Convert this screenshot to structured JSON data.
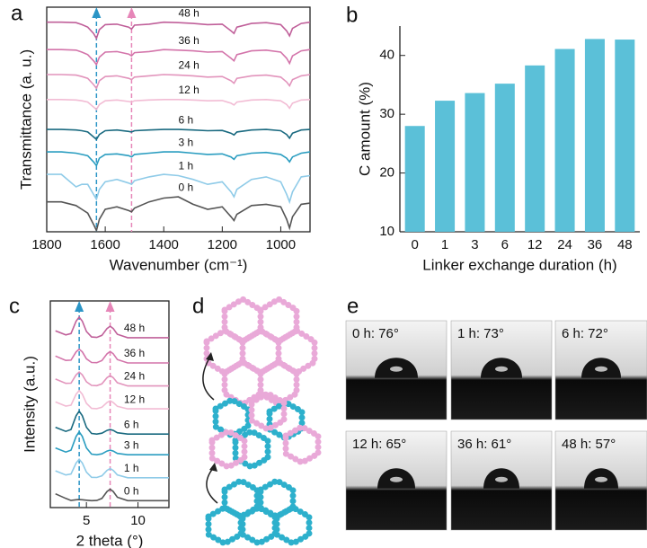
{
  "chart_data": [
    {
      "type": "line",
      "panel_label": "a",
      "xlabel": "Wavenumber (cm⁻¹)",
      "ylabel": "Transmittance (a. u.)",
      "xlim": [
        1800,
        900
      ],
      "xticks": [
        1800,
        1600,
        1400,
        1200,
        1000
      ],
      "ylim": [
        0,
        9
      ],
      "x": [
        1800,
        1750,
        1700,
        1680,
        1660,
        1640,
        1630,
        1620,
        1600,
        1560,
        1520,
        1510,
        1500,
        1450,
        1400,
        1350,
        1300,
        1250,
        1200,
        1170,
        1160,
        1150,
        1100,
        1050,
        1000,
        980,
        970,
        960,
        930,
        900
      ],
      "reference_lines": [
        {
          "x": 1630,
          "color": "#2b95c6"
        },
        {
          "x": 1510,
          "color": "#e686b8"
        }
      ],
      "series": [
        {
          "name": "0 h",
          "color": "#555555",
          "values": [
            1.2,
            1.2,
            1.05,
            0.9,
            0.75,
            0.3,
            0.05,
            0.5,
            0.9,
            1.0,
            0.85,
            0.8,
            0.95,
            1.2,
            1.35,
            1.4,
            1.1,
            0.9,
            1.0,
            0.6,
            0.45,
            0.7,
            1.05,
            1.1,
            1.0,
            0.5,
            0.15,
            0.6,
            1.1,
            1.15
          ]
        },
        {
          "name": "1 h",
          "color": "#8fcbe8",
          "values": [
            2.3,
            2.3,
            1.8,
            1.9,
            1.9,
            1.5,
            1.3,
            1.7,
            2.0,
            2.1,
            1.95,
            1.9,
            2.05,
            2.2,
            2.3,
            2.25,
            2.1,
            1.9,
            2.0,
            1.6,
            1.4,
            1.7,
            2.1,
            2.2,
            2.0,
            1.5,
            1.2,
            1.6,
            2.2,
            2.25
          ]
        },
        {
          "name": "3 h",
          "color": "#2a9dc0",
          "values": [
            3.2,
            3.2,
            3.15,
            3.1,
            3.05,
            2.8,
            2.65,
            2.95,
            3.1,
            3.12,
            3.05,
            3.0,
            3.1,
            3.15,
            3.2,
            3.2,
            3.15,
            3.1,
            3.12,
            3.0,
            2.9,
            3.05,
            3.15,
            3.18,
            3.1,
            2.95,
            2.8,
            3.0,
            3.15,
            3.2
          ]
        },
        {
          "name": "6 h",
          "color": "#1a6a80",
          "values": [
            4.1,
            4.1,
            4.08,
            4.05,
            4.0,
            3.8,
            3.7,
            3.9,
            4.05,
            4.08,
            4.02,
            4.0,
            4.05,
            4.08,
            4.1,
            4.1,
            4.08,
            4.05,
            4.06,
            3.95,
            3.88,
            4.0,
            4.08,
            4.1,
            4.05,
            3.9,
            3.75,
            3.95,
            4.08,
            4.1
          ]
        },
        {
          "name": "12 h",
          "color": "#f2bcd4",
          "values": [
            5.3,
            5.3,
            5.28,
            5.25,
            5.2,
            5.0,
            4.9,
            5.1,
            5.25,
            5.28,
            5.22,
            5.2,
            5.25,
            5.28,
            5.3,
            5.3,
            5.28,
            5.25,
            5.26,
            5.15,
            5.08,
            5.2,
            5.28,
            5.3,
            5.25,
            5.1,
            4.95,
            5.15,
            5.28,
            5.3
          ]
        },
        {
          "name": "24 h",
          "color": "#e294bc",
          "values": [
            6.3,
            6.3,
            6.28,
            6.22,
            6.15,
            5.9,
            5.75,
            6.05,
            6.22,
            6.25,
            6.15,
            6.1,
            6.2,
            6.25,
            6.3,
            6.28,
            6.25,
            6.2,
            6.22,
            6.05,
            5.95,
            6.15,
            6.25,
            6.28,
            6.2,
            6.0,
            5.85,
            6.1,
            6.25,
            6.3
          ]
        },
        {
          "name": "36 h",
          "color": "#d374aa",
          "values": [
            7.3,
            7.3,
            7.28,
            7.2,
            7.1,
            6.85,
            6.7,
            7.0,
            7.2,
            7.22,
            7.12,
            7.05,
            7.18,
            7.22,
            7.3,
            7.28,
            7.25,
            7.2,
            7.22,
            6.95,
            6.85,
            7.1,
            7.25,
            7.28,
            7.2,
            6.95,
            6.75,
            7.05,
            7.25,
            7.3
          ]
        },
        {
          "name": "48 h",
          "color": "#c0609a",
          "values": [
            8.4,
            8.4,
            8.38,
            8.3,
            8.2,
            7.95,
            7.75,
            8.1,
            8.3,
            8.32,
            8.2,
            8.12,
            8.28,
            8.32,
            8.4,
            8.38,
            8.35,
            8.3,
            8.32,
            8.05,
            7.95,
            8.2,
            8.35,
            8.38,
            8.3,
            8.05,
            7.85,
            8.15,
            8.35,
            8.4
          ]
        }
      ]
    },
    {
      "type": "bar",
      "panel_label": "b",
      "xlabel": "Linker exchange duration (h)",
      "ylabel": "C amount (%)",
      "categories": [
        "0",
        "1",
        "3",
        "6",
        "12",
        "24",
        "36",
        "48"
      ],
      "values": [
        28,
        32.3,
        33.6,
        35.2,
        38.3,
        41.1,
        42.8,
        42.7
      ],
      "color": "#5bc0d8",
      "ylim": [
        10,
        45
      ],
      "yticks": [
        10,
        20,
        30,
        40
      ]
    },
    {
      "type": "line",
      "panel_label": "c",
      "xlabel": "2 theta (°)",
      "ylabel": "Intensity (a.u.)",
      "xlim": [
        1.5,
        13
      ],
      "xticks": [
        5,
        10
      ],
      "ylim": [
        0,
        9
      ],
      "x": [
        2,
        3,
        3.5,
        4,
        4.3,
        4.6,
        5,
        5.5,
        6,
        6.5,
        7,
        7.3,
        7.6,
        8,
        9,
        10,
        11,
        12,
        13
      ],
      "reference_lines": [
        {
          "x": 4.3,
          "color": "#2b95c6"
        },
        {
          "x": 7.3,
          "color": "#e686b8"
        }
      ],
      "series": [
        {
          "name": "0 h",
          "color": "#555555",
          "values": [
            0.6,
            0.4,
            0.31,
            0.34,
            0.35,
            0.34,
            0.32,
            0.3,
            0.31,
            0.4,
            0.7,
            0.8,
            0.7,
            0.45,
            0.3,
            0.3,
            0.3,
            0.3,
            0.3
          ]
        },
        {
          "name": "1 h",
          "color": "#8fcbe8",
          "values": [
            1.6,
            1.42,
            1.46,
            1.94,
            2.1,
            1.94,
            1.54,
            1.32,
            1.31,
            1.38,
            1.62,
            1.7,
            1.62,
            1.42,
            1.3,
            1.3,
            1.3,
            1.3,
            1.3
          ]
        },
        {
          "name": "3 h",
          "color": "#2a9dc0",
          "values": [
            2.6,
            2.42,
            2.5,
            3.1,
            3.3,
            3.1,
            2.6,
            2.33,
            2.3,
            2.34,
            2.46,
            2.5,
            2.46,
            2.36,
            2.3,
            2.3,
            2.3,
            2.3,
            2.3
          ]
        },
        {
          "name": "6 h",
          "color": "#1a6a80",
          "values": [
            3.5,
            3.32,
            3.4,
            4.0,
            4.2,
            4.0,
            3.5,
            3.23,
            3.2,
            3.24,
            3.36,
            3.4,
            3.36,
            3.26,
            3.2,
            3.2,
            3.2,
            3.2,
            3.2
          ]
        },
        {
          "name": "12 h",
          "color": "#f2bcd4",
          "values": [
            4.6,
            4.42,
            4.46,
            4.94,
            5.1,
            4.94,
            4.54,
            4.32,
            4.31,
            4.37,
            4.58,
            4.65,
            4.58,
            4.41,
            4.3,
            4.3,
            4.3,
            4.3,
            4.3
          ]
        },
        {
          "name": "24 h",
          "color": "#e294bc",
          "values": [
            5.6,
            5.41,
            5.42,
            5.78,
            5.9,
            5.78,
            5.48,
            5.32,
            5.31,
            5.39,
            5.66,
            5.75,
            5.66,
            5.44,
            5.3,
            5.3,
            5.3,
            5.3,
            5.3
          ]
        },
        {
          "name": "36 h",
          "color": "#d374aa",
          "values": [
            6.6,
            6.41,
            6.42,
            6.78,
            6.9,
            6.78,
            6.48,
            6.32,
            6.31,
            6.4,
            6.7,
            6.8,
            6.7,
            6.45,
            6.3,
            6.3,
            6.3,
            6.3,
            6.3
          ]
        },
        {
          "name": "48 h",
          "color": "#c0609a",
          "values": [
            7.7,
            7.52,
            7.58,
            8.12,
            8.3,
            8.12,
            7.67,
            7.43,
            7.41,
            7.5,
            7.8,
            7.9,
            7.8,
            7.55,
            7.4,
            7.4,
            7.4,
            7.4,
            7.4
          ]
        }
      ]
    }
  ],
  "panel_d": {
    "panel_label": "d"
  },
  "panel_e": {
    "panel_label": "e",
    "captions": [
      "0 h: 76°",
      "1 h: 73°",
      "6 h: 72°",
      "12 h: 65°",
      "36 h: 61°",
      "48 h: 57°"
    ]
  }
}
